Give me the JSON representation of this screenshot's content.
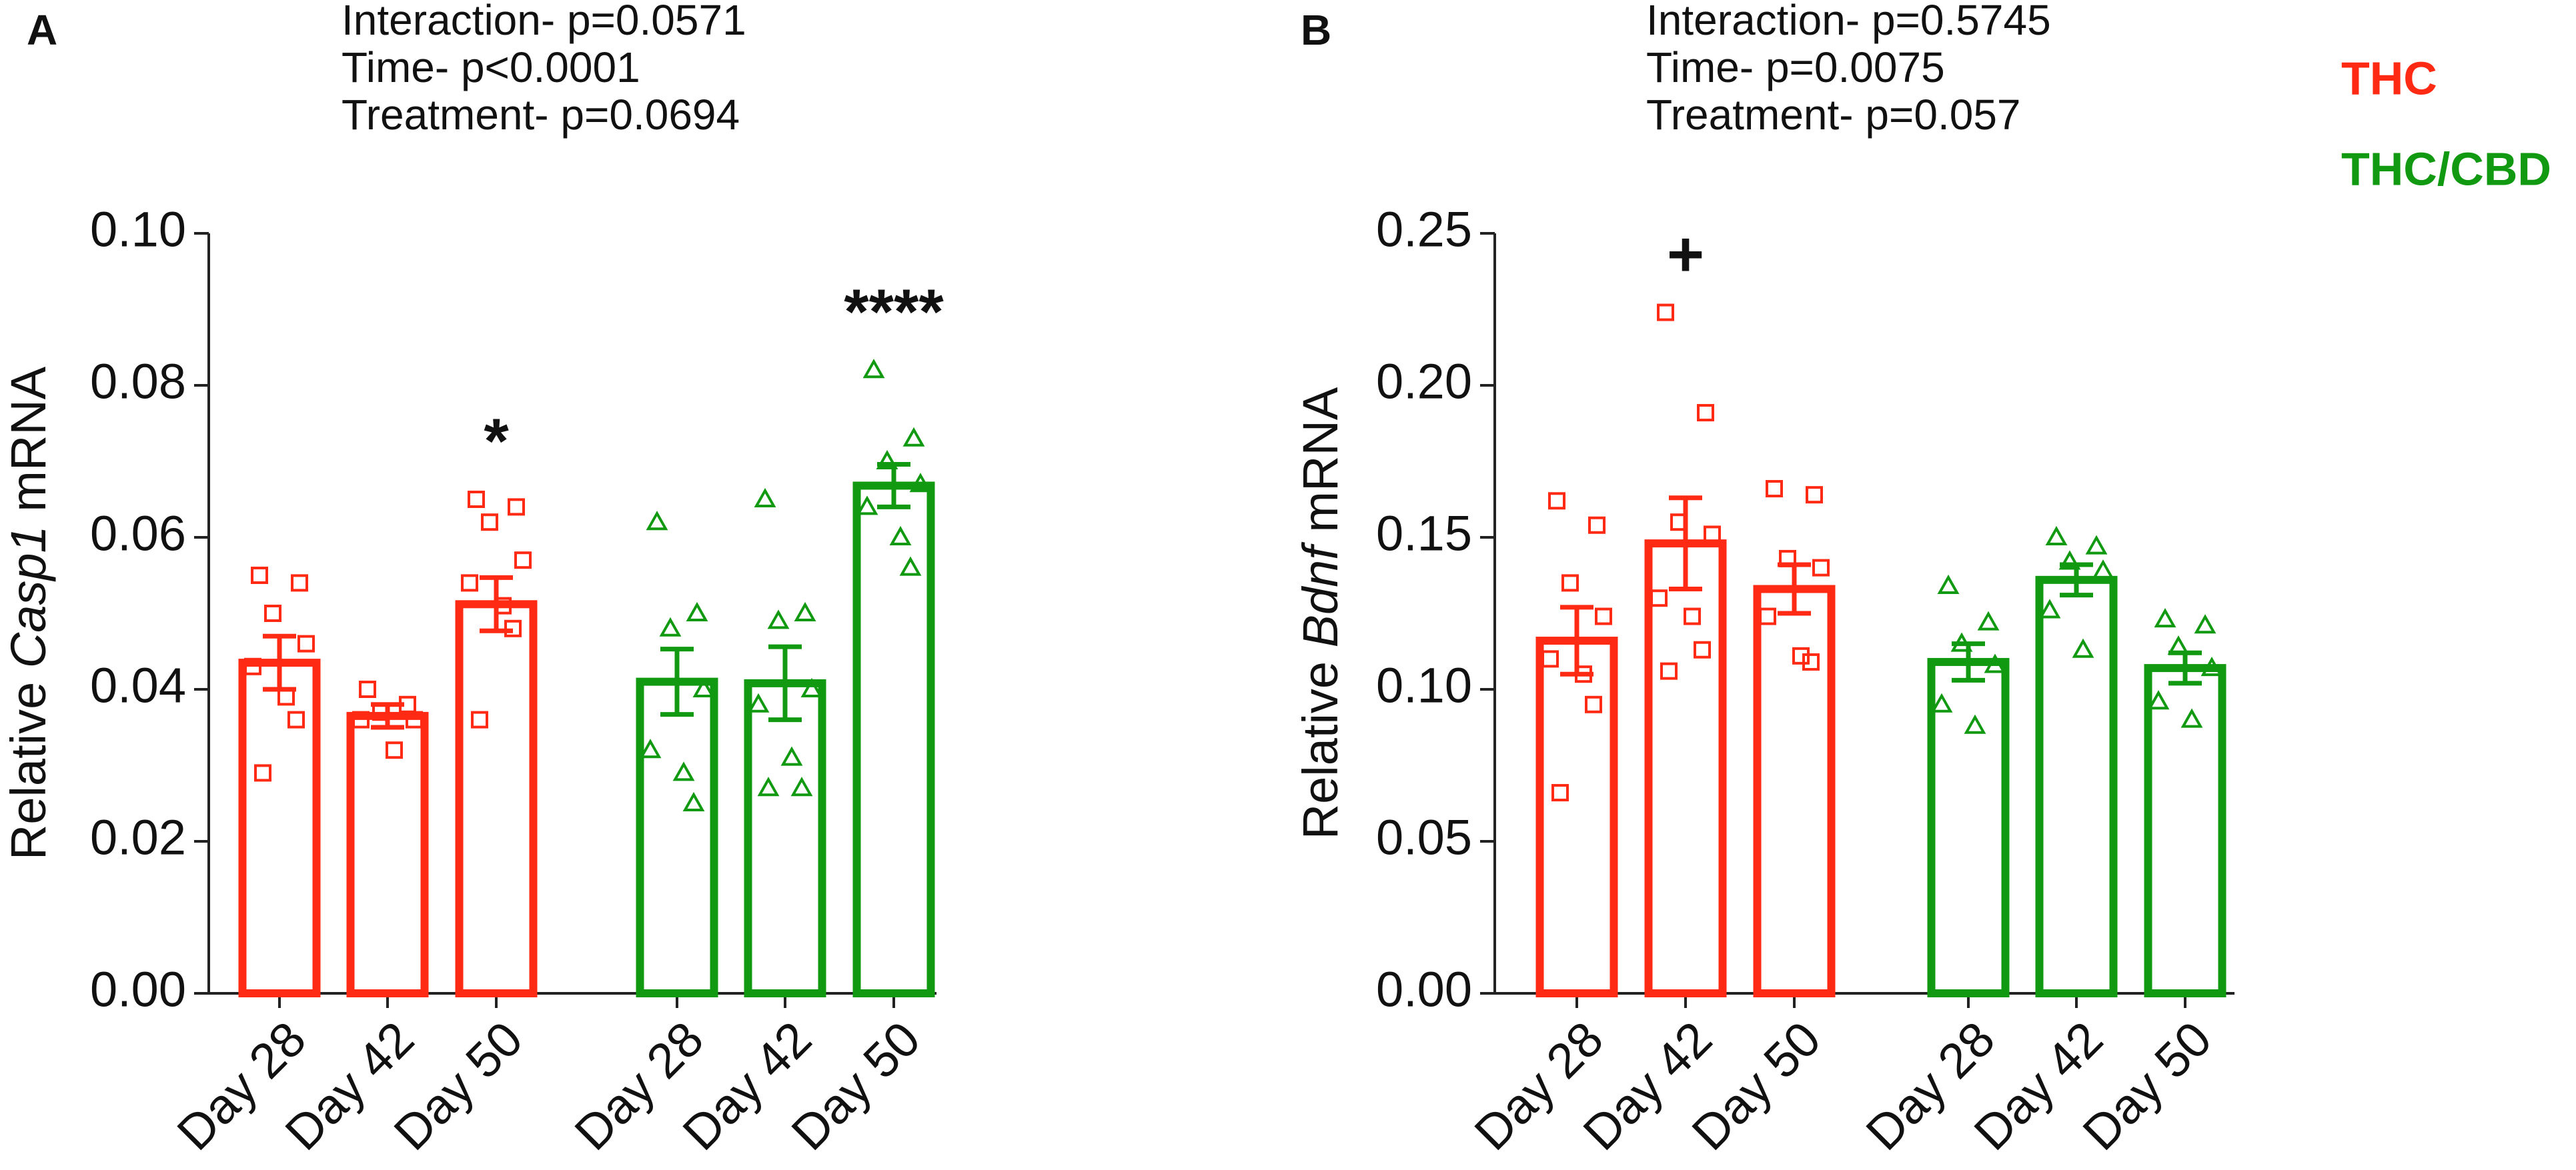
{
  "chart_data": [
    {
      "type": "bar",
      "panel": "A",
      "stats": [
        "Interaction- p=0.0571",
        "Time- p<0.0001",
        "Treatment- p=0.0694"
      ],
      "ylabel_parts": [
        "Relative ",
        "Casp1",
        " mRNA"
      ],
      "categories": [
        "Day 28",
        "Day 42",
        "Day 50",
        "Day 28",
        "Day 42",
        "Day 50"
      ],
      "significance": [
        null,
        null,
        "*",
        null,
        null,
        "****"
      ],
      "ylim": [
        0,
        0.1
      ],
      "yticks": [
        {
          "value": 0,
          "label": "0.00"
        },
        {
          "value": 0.02,
          "label": "0.02"
        },
        {
          "value": 0.04,
          "label": "0.04"
        },
        {
          "value": 0.06,
          "label": "0.06"
        },
        {
          "value": 0.08,
          "label": "0.08"
        },
        {
          "value": 0.1,
          "label": "0.10"
        }
      ],
      "series": [
        {
          "color": "#ff2a14",
          "marker": "square",
          "values": [
            0.0435,
            0.0365,
            0.0512,
            null,
            null,
            null
          ],
          "errors": [
            0.0035,
            0.0015,
            0.0035,
            null,
            null,
            null
          ],
          "points": [
            [
              0.055,
              0.054,
              0.05,
              0.046,
              0.043,
              0.039,
              0.036,
              0.029
            ],
            [
              0.04,
              0.038,
              0.037,
              0.036,
              0.036,
              0.032
            ],
            [
              0.065,
              0.064,
              0.062,
              0.057,
              0.054,
              0.051,
              0.048,
              0.036
            ],
            null,
            null,
            null
          ]
        },
        {
          "color": "#119a11",
          "marker": "triangle",
          "values": [
            null,
            null,
            null,
            0.041,
            0.0408,
            0.0668
          ],
          "errors": [
            null,
            null,
            null,
            0.0043,
            0.0048,
            0.0028
          ],
          "points": [
            null,
            null,
            null,
            [
              0.062,
              0.05,
              0.048,
              0.04,
              0.032,
              0.029,
              0.025
            ],
            [
              0.065,
              0.05,
              0.049,
              0.04,
              0.038,
              0.031,
              0.027,
              0.027
            ],
            [
              0.082,
              0.073,
              0.07,
              0.067,
              0.064,
              0.06,
              0.056
            ]
          ]
        }
      ]
    },
    {
      "type": "bar",
      "panel": "B",
      "stats": [
        "Interaction- p=0.5745",
        "Time- p=0.0075",
        "Treatment- p=0.057"
      ],
      "ylabel_parts": [
        "Relative ",
        "Bdnf",
        " mRNA"
      ],
      "categories": [
        "Day 28",
        "Day 42",
        "Day 50",
        "Day 28",
        "Day 42",
        "Day 50"
      ],
      "significance": [
        null,
        "+",
        null,
        null,
        null,
        null
      ],
      "ylim": [
        0,
        0.25
      ],
      "yticks": [
        {
          "value": 0,
          "label": "0.00"
        },
        {
          "value": 0.05,
          "label": "0.05"
        },
        {
          "value": 0.1,
          "label": "0.10"
        },
        {
          "value": 0.15,
          "label": "0.15"
        },
        {
          "value": 0.2,
          "label": "0.20"
        },
        {
          "value": 0.25,
          "label": "0.25"
        }
      ],
      "series": [
        {
          "name": "THC",
          "color": "#ff2a14",
          "marker": "square",
          "values": [
            0.116,
            0.148,
            0.133,
            null,
            null,
            null
          ],
          "errors": [
            0.011,
            0.015,
            0.008,
            null,
            null,
            null
          ],
          "points": [
            [
              0.162,
              0.154,
              0.135,
              0.124,
              0.11,
              0.105,
              0.095,
              0.066
            ],
            [
              0.224,
              0.191,
              0.155,
              0.151,
              0.13,
              0.124,
              0.113,
              0.106
            ],
            [
              0.166,
              0.164,
              0.143,
              0.14,
              0.124,
              0.111,
              0.109
            ],
            null,
            null,
            null
          ]
        },
        {
          "name": "THC/CBD",
          "color": "#119a11",
          "marker": "triangle",
          "values": [
            null,
            null,
            null,
            0.109,
            0.136,
            0.107
          ],
          "errors": [
            null,
            null,
            null,
            0.006,
            0.005,
            0.005
          ],
          "points": [
            null,
            null,
            null,
            [
              0.134,
              0.122,
              0.115,
              0.108,
              0.095,
              0.088
            ],
            [
              0.15,
              0.147,
              0.142,
              0.139,
              0.126,
              0.113
            ],
            [
              0.123,
              0.121,
              0.114,
              0.107,
              0.096,
              0.09
            ]
          ]
        }
      ]
    }
  ]
}
